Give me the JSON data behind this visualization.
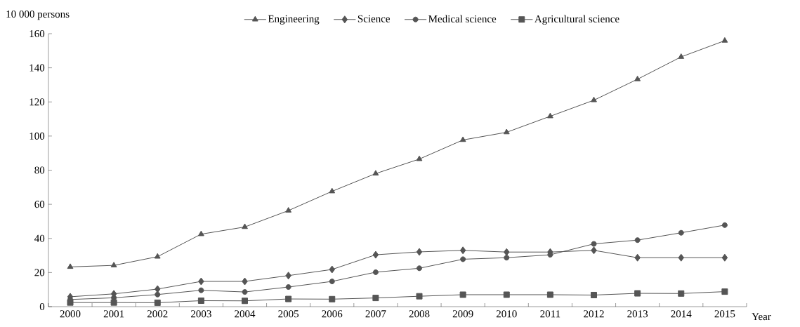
{
  "chart_data": {
    "type": "line",
    "ylabel": "10 000 persons",
    "xlabel": "Year",
    "categories": [
      "2000",
      "2001",
      "2002",
      "2003",
      "2004",
      "2005",
      "2006",
      "2007",
      "2008",
      "2009",
      "2010",
      "2011",
      "2012",
      "2013",
      "2014",
      "2015"
    ],
    "series": [
      {
        "name": "Engineering",
        "color": "#555555",
        "marker": "triangle",
        "values": [
          23.3,
          24.2,
          29.3,
          42.5,
          46.7,
          56.3,
          67.6,
          78,
          86.5,
          97.7,
          102.2,
          111.6,
          121,
          133.3,
          146.4,
          155.9
        ]
      },
      {
        "name": "Science",
        "color": "#555555",
        "marker": "diamond",
        "values": [
          5.8,
          7.5,
          10.3,
          14.8,
          14.8,
          18.2,
          21.8,
          30.4,
          32.1,
          33,
          32,
          32,
          33,
          28.7,
          28.7,
          28.7
        ]
      },
      {
        "name": "Medical science",
        "color": "#555555",
        "marker": "circle",
        "values": [
          4.2,
          5.2,
          7.1,
          9.6,
          8.6,
          11.5,
          14.8,
          20.2,
          22.5,
          27.8,
          28.7,
          30.4,
          36.8,
          39,
          43.3,
          47.8
        ]
      },
      {
        "name": "Agricultural science",
        "color": "#555555",
        "marker": "square",
        "values": [
          2.4,
          2.4,
          2.3,
          3.5,
          3.4,
          4.5,
          4.4,
          5.1,
          6.1,
          7.0,
          7.0,
          7.0,
          6.8,
          7.8,
          7.7,
          8.8
        ]
      }
    ],
    "ylim": [
      0,
      160
    ],
    "yticks": [
      0,
      20,
      40,
      60,
      80,
      100,
      120,
      140,
      160
    ],
    "legend": "top",
    "grid": false,
    "line_style": "solid"
  }
}
